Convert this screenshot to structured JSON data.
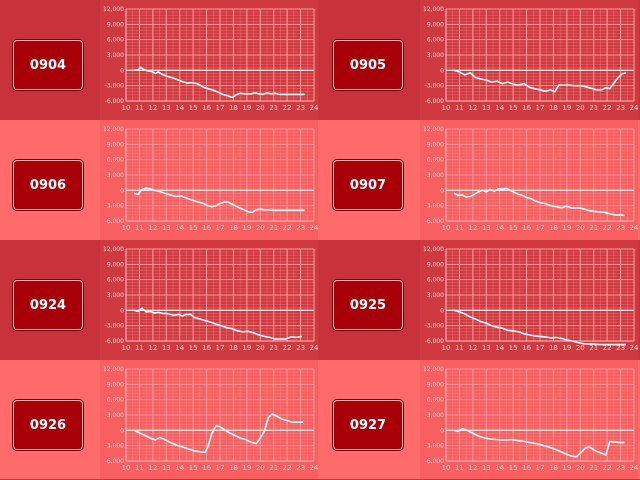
{
  "buttons": [
    "0904",
    "0905",
    "0906",
    "0907",
    "0924",
    "0925",
    "0926",
    "0927"
  ],
  "colors": {
    "panel_dark": "#c8323a",
    "panel_light": "#ff6a6a",
    "button_bg": "#a80008",
    "line": "#ffffff",
    "grid": "#ff9a9a"
  },
  "chart_data": [
    {
      "type": "line",
      "title": "0904",
      "ylim": [
        -6000,
        12000
      ],
      "xlim": [
        10,
        24
      ],
      "yticks": [
        "12,000",
        "9,000",
        "6,000",
        "3,000",
        "0",
        "-3,000",
        "-6,000"
      ],
      "xticks": [
        "10",
        "11",
        "12",
        "13",
        "14",
        "15",
        "16",
        "17",
        "18",
        "19",
        "20",
        "21",
        "22",
        "23",
        "24"
      ],
      "series": [
        {
          "x": [
            10.6,
            10.9,
            11.1,
            11.3,
            11.6,
            11.9,
            12.2,
            12.4,
            12.7,
            13.1,
            13.5,
            13.8,
            14.2,
            14.6,
            14.9,
            15.3,
            15.7,
            16.0,
            16.4,
            16.8,
            17.2,
            17.6,
            17.9,
            18.2,
            18.5,
            18.9,
            19.3,
            19.6,
            19.9,
            20.2,
            20.5,
            20.8,
            21.1,
            21.4,
            21.8,
            22.2,
            22.6,
            23.0,
            23.3
          ],
          "y": [
            0,
            100,
            600,
            200,
            -100,
            -200,
            -600,
            -300,
            -800,
            -1200,
            -1500,
            -1800,
            -2200,
            -2500,
            -2400,
            -2600,
            -3200,
            -3500,
            -3800,
            -4200,
            -4700,
            -5000,
            -5300,
            -4800,
            -4500,
            -4600,
            -4600,
            -4400,
            -4600,
            -4700,
            -4400,
            -4600,
            -4500,
            -4700,
            -4700,
            -4700,
            -4700,
            -4700,
            -4700
          ]
        }
      ]
    },
    {
      "type": "line",
      "title": "0905",
      "ylim": [
        -6000,
        12000
      ],
      "xlim": [
        10,
        24
      ],
      "yticks": [
        "12,000",
        "9,000",
        "6,000",
        "3,000",
        "0",
        "-3,000",
        "-6,000"
      ],
      "xticks": [
        "10",
        "11",
        "12",
        "13",
        "14",
        "15",
        "16",
        "17",
        "18",
        "19",
        "20",
        "21",
        "22",
        "23",
        "24"
      ],
      "series": [
        {
          "x": [
            10.6,
            11.0,
            11.4,
            11.8,
            12.2,
            12.6,
            13.0,
            13.4,
            13.8,
            14.2,
            14.6,
            15.0,
            15.4,
            15.8,
            16.2,
            16.6,
            17.0,
            17.4,
            17.8,
            18.1,
            18.4,
            18.8,
            19.2,
            19.6,
            20.0,
            20.4,
            20.8,
            21.2,
            21.6,
            21.9,
            22.2,
            22.5,
            22.8,
            23.1,
            23.4
          ],
          "y": [
            0,
            -300,
            -900,
            -500,
            -1400,
            -1700,
            -1900,
            -2300,
            -2100,
            -2600,
            -2300,
            -2700,
            -2900,
            -2600,
            -3300,
            -3600,
            -3800,
            -4100,
            -3800,
            -4200,
            -2900,
            -2900,
            -2900,
            -3000,
            -3000,
            -3200,
            -3500,
            -3800,
            -3800,
            -3400,
            -3600,
            -2500,
            -1500,
            -700,
            -500
          ]
        }
      ]
    },
    {
      "type": "line",
      "title": "0906",
      "ylim": [
        -6000,
        12000
      ],
      "xlim": [
        10,
        24
      ],
      "yticks": [
        "12,000",
        "9,000",
        "6,000",
        "3,000",
        "0",
        "-3,000",
        "-6,000"
      ],
      "xticks": [
        "10",
        "11",
        "12",
        "13",
        "14",
        "15",
        "16",
        "17",
        "18",
        "19",
        "20",
        "21",
        "22",
        "23",
        "24"
      ],
      "series": [
        {
          "x": [
            10.6,
            10.9,
            11.2,
            11.5,
            11.8,
            12.1,
            12.5,
            12.9,
            13.3,
            13.7,
            14.1,
            14.5,
            14.9,
            15.3,
            15.7,
            16.1,
            16.4,
            16.7,
            17.0,
            17.3,
            17.6,
            17.9,
            18.2,
            18.5,
            18.8,
            19.1,
            19.4,
            19.7,
            20.0,
            20.3,
            20.6,
            21.0,
            21.4,
            21.8,
            22.2,
            22.6,
            23.0,
            23.3
          ],
          "y": [
            -600,
            -800,
            200,
            400,
            300,
            0,
            -200,
            -600,
            -900,
            -1200,
            -1100,
            -1500,
            -1900,
            -2200,
            -2500,
            -3000,
            -3200,
            -3000,
            -2600,
            -2300,
            -2300,
            -2700,
            -3100,
            -3500,
            -3800,
            -4200,
            -4300,
            -3800,
            -3700,
            -3800,
            -3800,
            -3900,
            -3900,
            -3900,
            -3900,
            -3900,
            -3900,
            -3900
          ]
        }
      ]
    },
    {
      "type": "line",
      "title": "0907",
      "ylim": [
        -6000,
        12000
      ],
      "xlim": [
        10,
        24
      ],
      "yticks": [
        "12,000",
        "9,000",
        "6,000",
        "3,000",
        "0",
        "-3,000",
        "-6,000"
      ],
      "xticks": [
        "10",
        "11",
        "12",
        "13",
        "14",
        "15",
        "16",
        "17",
        "18",
        "19",
        "20",
        "21",
        "22",
        "23",
        "24"
      ],
      "series": [
        {
          "x": [
            10.6,
            10.9,
            11.2,
            11.5,
            11.8,
            12.1,
            12.4,
            12.7,
            13.0,
            13.3,
            13.6,
            13.9,
            14.2,
            14.5,
            14.8,
            15.1,
            15.4,
            15.7,
            16.0,
            16.3,
            16.6,
            17.0,
            17.4,
            17.8,
            18.2,
            18.6,
            19.0,
            19.4,
            19.8,
            20.2,
            20.6,
            21.0,
            21.4,
            21.8,
            22.2,
            22.6,
            23.0,
            23.3
          ],
          "y": [
            -600,
            -1000,
            -900,
            -1300,
            -1200,
            -800,
            -300,
            0,
            -300,
            200,
            -200,
            300,
            200,
            400,
            0,
            -400,
            -800,
            -1000,
            -1400,
            -1600,
            -2000,
            -2400,
            -2600,
            -3000,
            -3200,
            -3400,
            -3100,
            -3500,
            -3400,
            -3600,
            -3900,
            -4100,
            -4200,
            -4300,
            -4600,
            -4800,
            -4800,
            -4900
          ]
        }
      ]
    },
    {
      "type": "line",
      "title": "0924",
      "ylim": [
        -6000,
        12000
      ],
      "xlim": [
        10,
        24
      ],
      "yticks": [
        "12,000",
        "9,000",
        "6,000",
        "3,000",
        "0",
        "-3,000",
        "-6,000"
      ],
      "xticks": [
        "10",
        "11",
        "12",
        "13",
        "14",
        "15",
        "16",
        "17",
        "18",
        "19",
        "20",
        "21",
        "22",
        "23",
        "24"
      ],
      "series": [
        {
          "x": [
            10.6,
            10.9,
            11.2,
            11.5,
            11.8,
            12.1,
            12.4,
            12.7,
            13.0,
            13.3,
            13.6,
            13.9,
            14.2,
            14.5,
            14.8,
            15.1,
            15.5,
            15.9,
            16.3,
            16.7,
            17.1,
            17.5,
            17.9,
            18.3,
            18.7,
            19.1,
            19.5,
            19.9,
            20.3,
            20.7,
            21.1,
            21.5,
            21.9,
            22.3,
            22.7,
            23.1
          ],
          "y": [
            0,
            -200,
            400,
            -300,
            -200,
            -500,
            -400,
            -600,
            -600,
            -800,
            -1000,
            -800,
            -1100,
            -800,
            -800,
            -1400,
            -1700,
            -2000,
            -2300,
            -2700,
            -3000,
            -3400,
            -3600,
            -4000,
            -4200,
            -4100,
            -4400,
            -4800,
            -5100,
            -5300,
            -5600,
            -5600,
            -5600,
            -5200,
            -5300,
            -5100
          ]
        }
      ]
    },
    {
      "type": "line",
      "title": "0925",
      "ylim": [
        -6000,
        12000
      ],
      "xlim": [
        10,
        24
      ],
      "yticks": [
        "12,000",
        "9,000",
        "6,000",
        "3,000",
        "0",
        "-3,000",
        "-6,000"
      ],
      "xticks": [
        "10",
        "11",
        "12",
        "13",
        "14",
        "15",
        "16",
        "17",
        "18",
        "19",
        "20",
        "21",
        "22",
        "23",
        "24"
      ],
      "series": [
        {
          "x": [
            10.6,
            11.0,
            11.4,
            11.8,
            12.2,
            12.6,
            13.0,
            13.4,
            13.8,
            14.2,
            14.6,
            15.0,
            15.4,
            15.8,
            16.2,
            16.6,
            17.0,
            17.4,
            17.8,
            18.2,
            18.6,
            19.0,
            19.4,
            19.8,
            20.2,
            20.6,
            21.0,
            21.4,
            21.8,
            22.2,
            22.6,
            23.0,
            23.4
          ],
          "y": [
            0,
            -300,
            -700,
            -1300,
            -1700,
            -2200,
            -2500,
            -3000,
            -3300,
            -3500,
            -3900,
            -4000,
            -4200,
            -4600,
            -4800,
            -5000,
            -5100,
            -5200,
            -5400,
            -5300,
            -5500,
            -5800,
            -6000,
            -6300,
            -6500,
            -6600,
            -6600,
            -6700,
            -6700,
            -6700,
            -6700,
            -6700,
            -6700
          ]
        }
      ]
    },
    {
      "type": "line",
      "title": "0926",
      "ylim": [
        -6000,
        12000
      ],
      "xlim": [
        10,
        24
      ],
      "yticks": [
        "12,000",
        "9,000",
        "6,000",
        "3,000",
        "0",
        "-3,000",
        "-6,000"
      ],
      "xticks": [
        "10",
        "11",
        "12",
        "13",
        "14",
        "15",
        "16",
        "17",
        "18",
        "19",
        "20",
        "21",
        "22",
        "23",
        "24"
      ],
      "series": [
        {
          "x": [
            10.6,
            11.0,
            11.4,
            11.8,
            12.2,
            12.5,
            12.8,
            13.1,
            13.5,
            13.9,
            14.3,
            14.7,
            15.1,
            15.5,
            15.9,
            16.1,
            16.4,
            16.7,
            17.0,
            17.3,
            17.7,
            18.1,
            18.5,
            18.9,
            19.3,
            19.7,
            20.0,
            20.3,
            20.6,
            20.9,
            21.2,
            21.6,
            22.0,
            22.4,
            22.8,
            23.2
          ],
          "y": [
            0,
            -500,
            -1000,
            -1500,
            -1900,
            -1400,
            -1700,
            -2100,
            -2600,
            -3000,
            -3300,
            -3700,
            -4000,
            -4200,
            -4300,
            -3200,
            -600,
            900,
            700,
            200,
            -500,
            -1000,
            -1500,
            -1800,
            -2300,
            -2600,
            -1500,
            -200,
            2500,
            3200,
            2800,
            2200,
            1900,
            1600,
            1600,
            1600
          ]
        }
      ]
    },
    {
      "type": "line",
      "title": "0927",
      "ylim": [
        -6000,
        12000
      ],
      "xlim": [
        10,
        24
      ],
      "yticks": [
        "12,000",
        "9,000",
        "6,000",
        "3,000",
        "0",
        "-3,000",
        "-6,000"
      ],
      "xticks": [
        "10",
        "11",
        "12",
        "13",
        "14",
        "15",
        "16",
        "17",
        "18",
        "19",
        "20",
        "21",
        "22",
        "23",
        "24"
      ],
      "series": [
        {
          "x": [
            10.6,
            10.9,
            11.2,
            11.5,
            11.8,
            12.1,
            12.5,
            12.9,
            13.3,
            13.7,
            14.1,
            14.5,
            14.9,
            15.3,
            15.7,
            16.1,
            16.5,
            16.9,
            17.3,
            17.7,
            18.1,
            18.5,
            18.9,
            19.3,
            19.7,
            20.1,
            20.4,
            20.7,
            21.0,
            21.3,
            21.6,
            21.9,
            22.2,
            22.6,
            23.0,
            23.3
          ],
          "y": [
            0,
            -200,
            300,
            100,
            -300,
            -700,
            -1200,
            -1500,
            -1700,
            -1800,
            -1900,
            -1900,
            -1800,
            -2000,
            -2100,
            -2300,
            -2500,
            -2700,
            -3000,
            -3300,
            -3700,
            -4100,
            -4600,
            -5000,
            -5200,
            -4200,
            -3400,
            -3300,
            -3800,
            -4200,
            -4500,
            -4800,
            -2200,
            -2300,
            -2400,
            -2400
          ]
        }
      ]
    }
  ]
}
